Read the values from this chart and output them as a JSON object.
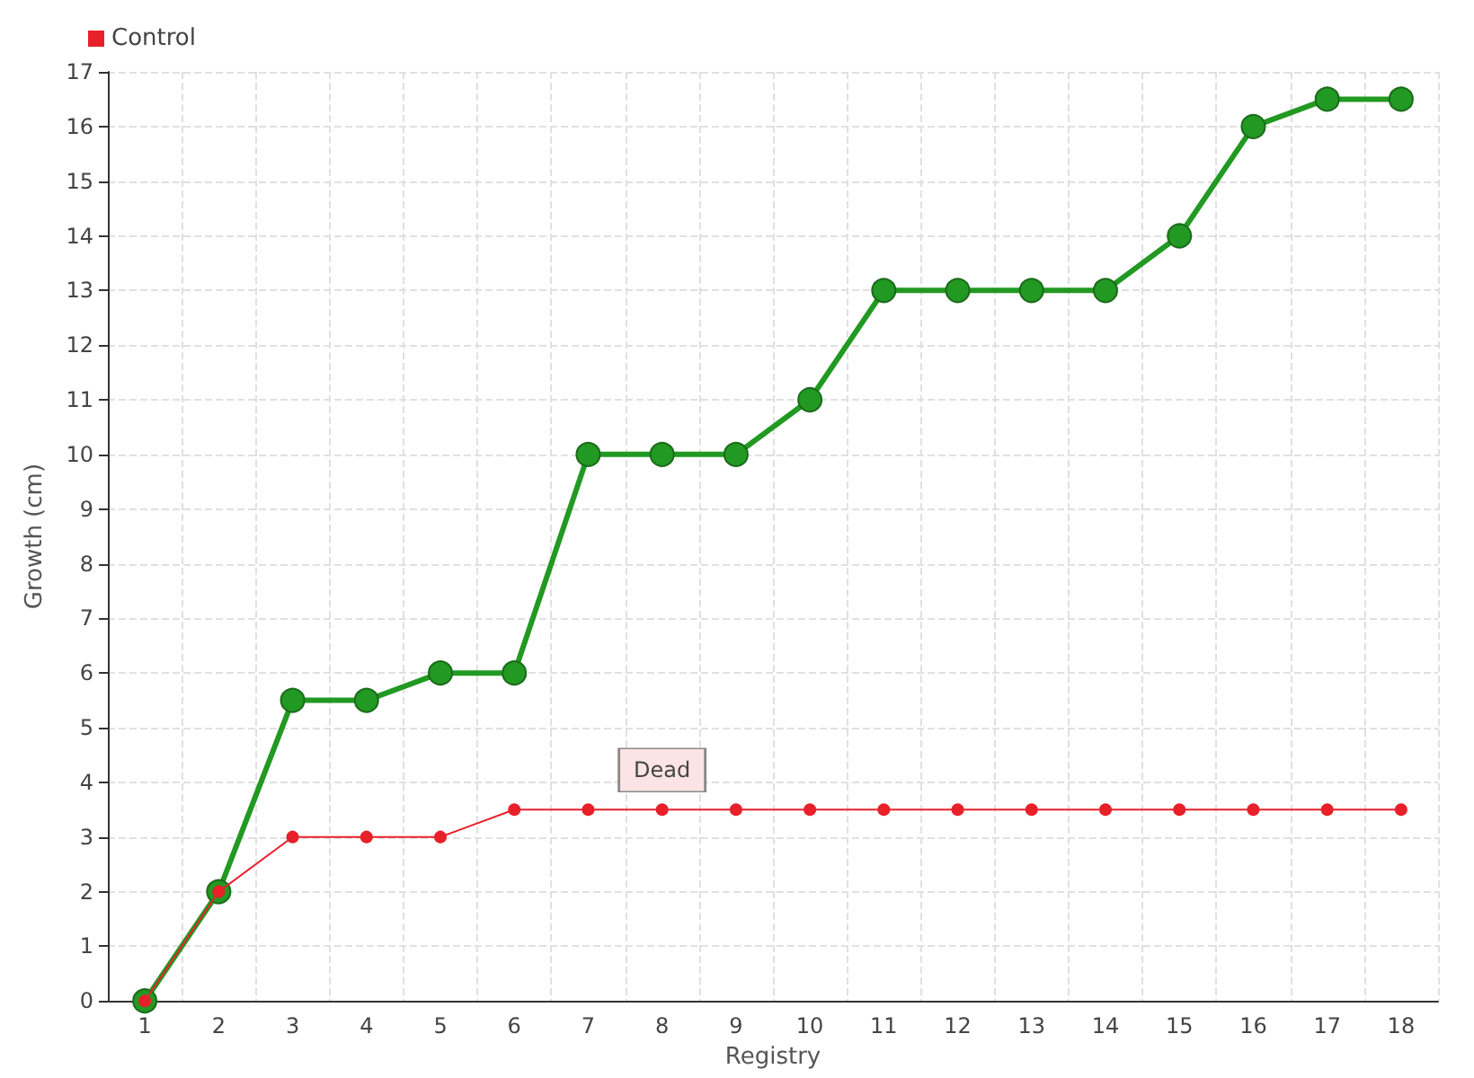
{
  "chart_data": {
    "type": "line",
    "xlabel": "Registry",
    "ylabel": "Growth (cm)",
    "categories": [
      "1",
      "2",
      "3",
      "4",
      "5",
      "6",
      "7",
      "8",
      "9",
      "10",
      "11",
      "12",
      "13",
      "14",
      "15",
      "16",
      "17",
      "18"
    ],
    "series": [
      {
        "color": "#229922",
        "values": [
          0,
          2,
          5.5,
          5.5,
          6,
          6,
          10,
          10,
          10,
          11,
          13,
          13,
          13,
          13,
          14,
          16,
          16.5,
          16.5
        ]
      },
      {
        "name": "Control",
        "color": "#e8202a",
        "values": [
          0,
          2,
          3,
          3,
          3,
          3.5,
          3.5,
          3.5,
          3.5,
          3.5,
          3.5,
          3.5,
          3.5,
          3.5,
          3.5,
          3.5,
          3.5,
          3.5
        ]
      }
    ],
    "ylim": [
      0,
      17
    ],
    "yticks": [
      0,
      1,
      2,
      3,
      4,
      5,
      6,
      7,
      8,
      9,
      10,
      11,
      12,
      13,
      14,
      15,
      16,
      17
    ],
    "grid": true,
    "legend": "top left",
    "marker": "circle",
    "line_style": "solid",
    "annotations": [
      {
        "text": "Dead",
        "x": "8",
        "y": 3.5
      }
    ]
  }
}
